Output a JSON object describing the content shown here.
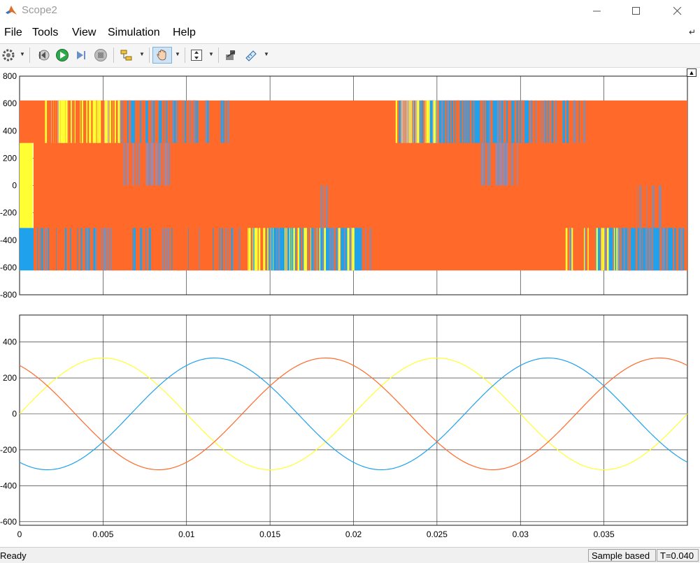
{
  "window": {
    "title": "Scope2",
    "minimize_icon": "minimize-icon",
    "maximize_icon": "maximize-icon",
    "close_icon": "close-icon"
  },
  "menu": {
    "items": [
      "File",
      "Tools",
      "View",
      "Simulation",
      "Help"
    ],
    "overflow_icon": "menu-overflow-icon"
  },
  "toolbar": {
    "buttons": [
      "settings-icon",
      "step-back-icon",
      "run-icon",
      "step-forward-icon",
      "stop-icon",
      "highlight-block-icon",
      "pan-icon",
      "zoom-axes-icon",
      "style-icon",
      "measure-icon"
    ],
    "pressed": "pan-icon"
  },
  "plots": {
    "colors": {
      "ch1": "#ffff33",
      "ch2": "#1fa1ec",
      "ch3": "#ff6a2a",
      "grid": "#1a1a1a"
    },
    "top": {
      "yticks": [
        "800",
        "600",
        "400",
        "200",
        "0",
        "-200",
        "-400",
        "-600",
        "-800"
      ]
    },
    "bottom": {
      "yticks": [
        "400",
        "200",
        "0",
        "-200",
        "-400",
        "-600"
      ],
      "xticks": [
        "0",
        "0.005",
        "0.01",
        "0.015",
        "0.02",
        "0.025",
        "0.03",
        "0.035"
      ]
    }
  },
  "chart_data": [
    {
      "type": "line",
      "title": "",
      "xlim": [
        0,
        0.04
      ],
      "ylim": [
        -800,
        800
      ],
      "series": [
        {
          "color": "#ffff33",
          "levels": [
            -311,
            0,
            311
          ],
          "description_values": [
            311,
            -311
          ]
        },
        {
          "color": "#1fa1ec",
          "levels": [
            -622,
            -311,
            311,
            622
          ]
        },
        {
          "color": "#ff6a2a",
          "levels": [
            -622,
            -311,
            0,
            311,
            622
          ]
        }
      ],
      "grid": true
    },
    {
      "type": "line",
      "title": "",
      "xlim": [
        0,
        0.04
      ],
      "ylim": [
        -620,
        550
      ],
      "grid": true,
      "frequency_hz": 50,
      "amplitude": 311,
      "series": [
        {
          "color": "#ffff33",
          "phase_deg": 0
        },
        {
          "color": "#1fa1ec",
          "phase_deg": -120
        },
        {
          "color": "#ff6a2a",
          "phase_deg": 120
        }
      ]
    }
  ],
  "status": {
    "ready": "Ready",
    "mode": "Sample based",
    "time": "T=0.040"
  }
}
